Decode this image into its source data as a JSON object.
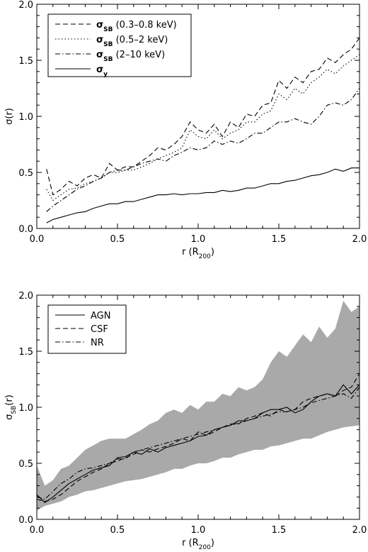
{
  "chart_data": [
    {
      "type": "line",
      "xlabel": "r (R",
      "xlabel_sub": "200",
      "xlabel_tail": ")",
      "ylabel": "σ(r)",
      "xlim": [
        0.0,
        2.0
      ],
      "ylim": [
        0.0,
        2.0
      ],
      "xticks": [
        "0.0",
        "0.5",
        "1.0",
        "1.5",
        "2.0"
      ],
      "yticks": [
        "0.0",
        "0.5",
        "1.0",
        "1.5",
        "2.0"
      ],
      "legend_position": "top-left",
      "x": [
        0.06,
        0.1,
        0.15,
        0.2,
        0.25,
        0.3,
        0.35,
        0.4,
        0.45,
        0.5,
        0.55,
        0.6,
        0.65,
        0.7,
        0.75,
        0.8,
        0.85,
        0.9,
        0.95,
        1.0,
        1.05,
        1.1,
        1.15,
        1.2,
        1.25,
        1.3,
        1.35,
        1.4,
        1.45,
        1.5,
        1.55,
        1.6,
        1.65,
        1.7,
        1.75,
        1.8,
        1.85,
        1.9,
        1.95,
        2.0
      ],
      "series": [
        {
          "name": "σSB (0.3–0.8 keV)",
          "name_main": "σ",
          "name_sub": "SB",
          "name_rest": " (0.3–0.8 keV)",
          "style": "dashed",
          "values": [
            0.53,
            0.3,
            0.35,
            0.42,
            0.38,
            0.45,
            0.48,
            0.45,
            0.58,
            0.52,
            0.55,
            0.55,
            0.6,
            0.65,
            0.72,
            0.7,
            0.75,
            0.82,
            0.95,
            0.88,
            0.85,
            0.93,
            0.82,
            0.95,
            0.9,
            1.02,
            1.0,
            1.1,
            1.12,
            1.32,
            1.25,
            1.35,
            1.3,
            1.4,
            1.42,
            1.52,
            1.48,
            1.55,
            1.6,
            1.7
          ]
        },
        {
          "name": "σSB (0.5–2 keV)",
          "name_main": "σ",
          "name_sub": "SB",
          "name_rest": " (0.5–2 keV)",
          "style": "dotted",
          "values": [
            0.35,
            0.25,
            0.3,
            0.35,
            0.36,
            0.4,
            0.42,
            0.45,
            0.5,
            0.5,
            0.52,
            0.52,
            0.55,
            0.58,
            0.62,
            0.65,
            0.68,
            0.72,
            0.88,
            0.82,
            0.8,
            0.88,
            0.8,
            0.85,
            0.88,
            0.95,
            0.95,
            1.02,
            1.05,
            1.2,
            1.15,
            1.25,
            1.2,
            1.3,
            1.35,
            1.42,
            1.38,
            1.45,
            1.5,
            1.55
          ]
        },
        {
          "name": "σSB (2–10 keV)",
          "name_main": "σ",
          "name_sub": "SB",
          "name_rest": " (2–10 keV)",
          "style": "dashdot",
          "values": [
            0.15,
            0.2,
            0.25,
            0.3,
            0.35,
            0.38,
            0.42,
            0.45,
            0.5,
            0.52,
            0.52,
            0.55,
            0.58,
            0.6,
            0.62,
            0.6,
            0.65,
            0.68,
            0.72,
            0.7,
            0.72,
            0.78,
            0.75,
            0.78,
            0.76,
            0.8,
            0.85,
            0.85,
            0.9,
            0.95,
            0.95,
            0.98,
            0.95,
            0.93,
            1.0,
            1.1,
            1.12,
            1.1,
            1.15,
            1.25
          ]
        },
        {
          "name": "σy",
          "name_main": "σ",
          "name_sub": "y",
          "name_rest": "",
          "style": "solid",
          "values": [
            0.05,
            0.08,
            0.1,
            0.12,
            0.14,
            0.15,
            0.18,
            0.2,
            0.22,
            0.22,
            0.24,
            0.24,
            0.26,
            0.28,
            0.3,
            0.3,
            0.31,
            0.3,
            0.31,
            0.31,
            0.32,
            0.32,
            0.34,
            0.33,
            0.34,
            0.36,
            0.36,
            0.38,
            0.4,
            0.4,
            0.42,
            0.43,
            0.45,
            0.47,
            0.48,
            0.5,
            0.53,
            0.51,
            0.54,
            0.54
          ]
        }
      ]
    },
    {
      "type": "line",
      "xlabel": "r (R",
      "xlabel_sub": "200",
      "xlabel_tail": ")",
      "ylabel": "σ",
      "ylabel_sub": "SB",
      "ylabel_tail": "(r)",
      "xlim": [
        0.0,
        2.0
      ],
      "ylim": [
        0.0,
        2.0
      ],
      "xticks": [
        "0.0",
        "0.5",
        "1.0",
        "1.5",
        "2.0"
      ],
      "yticks": [
        "0.0",
        "0.5",
        "1.0",
        "1.5",
        "2.0"
      ],
      "legend_position": "top-left",
      "band_color": "#a9a9a9",
      "band": {
        "x": [
          0.0,
          0.05,
          0.1,
          0.15,
          0.2,
          0.25,
          0.3,
          0.35,
          0.4,
          0.45,
          0.5,
          0.55,
          0.6,
          0.65,
          0.7,
          0.75,
          0.8,
          0.85,
          0.9,
          0.95,
          1.0,
          1.05,
          1.1,
          1.15,
          1.2,
          1.25,
          1.3,
          1.35,
          1.4,
          1.45,
          1.5,
          1.55,
          1.6,
          1.65,
          1.7,
          1.75,
          1.8,
          1.85,
          1.9,
          1.95,
          2.0
        ],
        "upper": [
          0.48,
          0.3,
          0.35,
          0.45,
          0.48,
          0.55,
          0.62,
          0.66,
          0.7,
          0.72,
          0.72,
          0.72,
          0.76,
          0.8,
          0.85,
          0.88,
          0.95,
          0.98,
          0.95,
          1.02,
          0.98,
          1.05,
          1.05,
          1.12,
          1.1,
          1.18,
          1.15,
          1.18,
          1.25,
          1.4,
          1.5,
          1.45,
          1.55,
          1.65,
          1.58,
          1.72,
          1.62,
          1.7,
          1.95,
          1.85,
          1.9
        ],
        "lower": [
          0.08,
          0.12,
          0.14,
          0.16,
          0.2,
          0.22,
          0.25,
          0.26,
          0.28,
          0.3,
          0.32,
          0.34,
          0.35,
          0.36,
          0.38,
          0.4,
          0.42,
          0.45,
          0.45,
          0.48,
          0.5,
          0.5,
          0.52,
          0.55,
          0.55,
          0.58,
          0.6,
          0.62,
          0.62,
          0.65,
          0.66,
          0.68,
          0.7,
          0.72,
          0.72,
          0.75,
          0.78,
          0.8,
          0.82,
          0.83,
          0.84
        ]
      },
      "x": [
        0.0,
        0.05,
        0.1,
        0.15,
        0.2,
        0.25,
        0.3,
        0.35,
        0.4,
        0.45,
        0.5,
        0.55,
        0.6,
        0.65,
        0.7,
        0.75,
        0.8,
        0.85,
        0.9,
        0.95,
        1.0,
        1.05,
        1.1,
        1.15,
        1.2,
        1.25,
        1.3,
        1.35,
        1.4,
        1.45,
        1.5,
        1.55,
        1.6,
        1.65,
        1.7,
        1.75,
        1.8,
        1.85,
        1.9,
        1.95,
        2.0
      ],
      "series": [
        {
          "name": "AGN",
          "style": "solid",
          "values": [
            0.22,
            0.15,
            0.2,
            0.26,
            0.32,
            0.36,
            0.4,
            0.44,
            0.46,
            0.48,
            0.55,
            0.56,
            0.6,
            0.58,
            0.63,
            0.6,
            0.64,
            0.66,
            0.68,
            0.7,
            0.74,
            0.75,
            0.8,
            0.82,
            0.84,
            0.88,
            0.88,
            0.9,
            0.95,
            0.98,
            0.98,
            1.0,
            0.95,
            0.98,
            1.05,
            1.1,
            1.12,
            1.1,
            1.2,
            1.12,
            1.2
          ]
        },
        {
          "name": "CSF",
          "style": "dashed",
          "values": [
            0.18,
            0.16,
            0.18,
            0.22,
            0.28,
            0.34,
            0.38,
            0.42,
            0.45,
            0.5,
            0.52,
            0.55,
            0.58,
            0.62,
            0.6,
            0.63,
            0.65,
            0.68,
            0.72,
            0.7,
            0.78,
            0.75,
            0.78,
            0.82,
            0.85,
            0.85,
            0.9,
            0.92,
            0.95,
            0.92,
            0.98,
            0.96,
            0.98,
            1.05,
            1.08,
            1.1,
            1.12,
            1.1,
            1.15,
            1.18,
            1.3
          ]
        },
        {
          "name": "NR",
          "style": "dashdot",
          "values": [
            0.2,
            0.18,
            0.25,
            0.32,
            0.36,
            0.42,
            0.45,
            0.46,
            0.48,
            0.5,
            0.54,
            0.54,
            0.6,
            0.62,
            0.64,
            0.66,
            0.68,
            0.7,
            0.72,
            0.74,
            0.76,
            0.78,
            0.8,
            0.82,
            0.84,
            0.86,
            0.88,
            0.9,
            0.92,
            0.94,
            0.96,
            0.96,
            0.98,
            1.0,
            1.04,
            1.06,
            1.08,
            1.1,
            1.12,
            1.08,
            1.18
          ]
        }
      ]
    }
  ]
}
